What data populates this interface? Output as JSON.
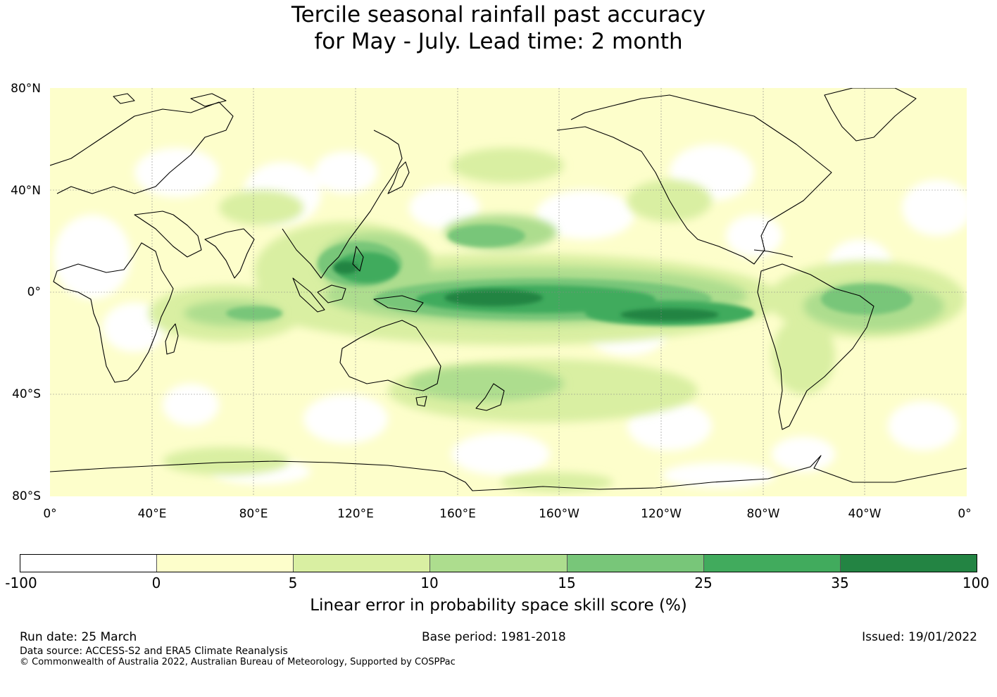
{
  "title": {
    "line1": "Tercile seasonal rainfall past accuracy",
    "line2": "for May - July. Lead time: 2 month"
  },
  "map": {
    "lat_labels": [
      "80°N",
      "40°N",
      "0°",
      "40°S",
      "80°S"
    ],
    "lon_labels": [
      "0°",
      "40°E",
      "80°E",
      "120°E",
      "160°E",
      "160°W",
      "120°W",
      "80°W",
      "40°W",
      "0°"
    ],
    "background_color": "#fdfecb"
  },
  "colorbar": {
    "ticks": [
      "-100",
      "0",
      "5",
      "10",
      "15",
      "25",
      "35",
      "100"
    ],
    "colors": [
      "#ffffff",
      "#fdfecb",
      "#d9efa2",
      "#addd8e",
      "#78c679",
      "#41ab5d",
      "#238443"
    ],
    "label": "Linear error in probability space skill score (%)"
  },
  "footer": {
    "run_date": "Run date: 25 March",
    "base_period": "Base period: 1981-2018",
    "issued": "Issued: 19/01/2022",
    "data_source": "Data source: ACCESS-S2 and ERA5 Climate Reanalysis",
    "copyright": "© Commonwealth of Australia 2022, Australian Bureau of Meteorology, Supported by COSPPac"
  }
}
